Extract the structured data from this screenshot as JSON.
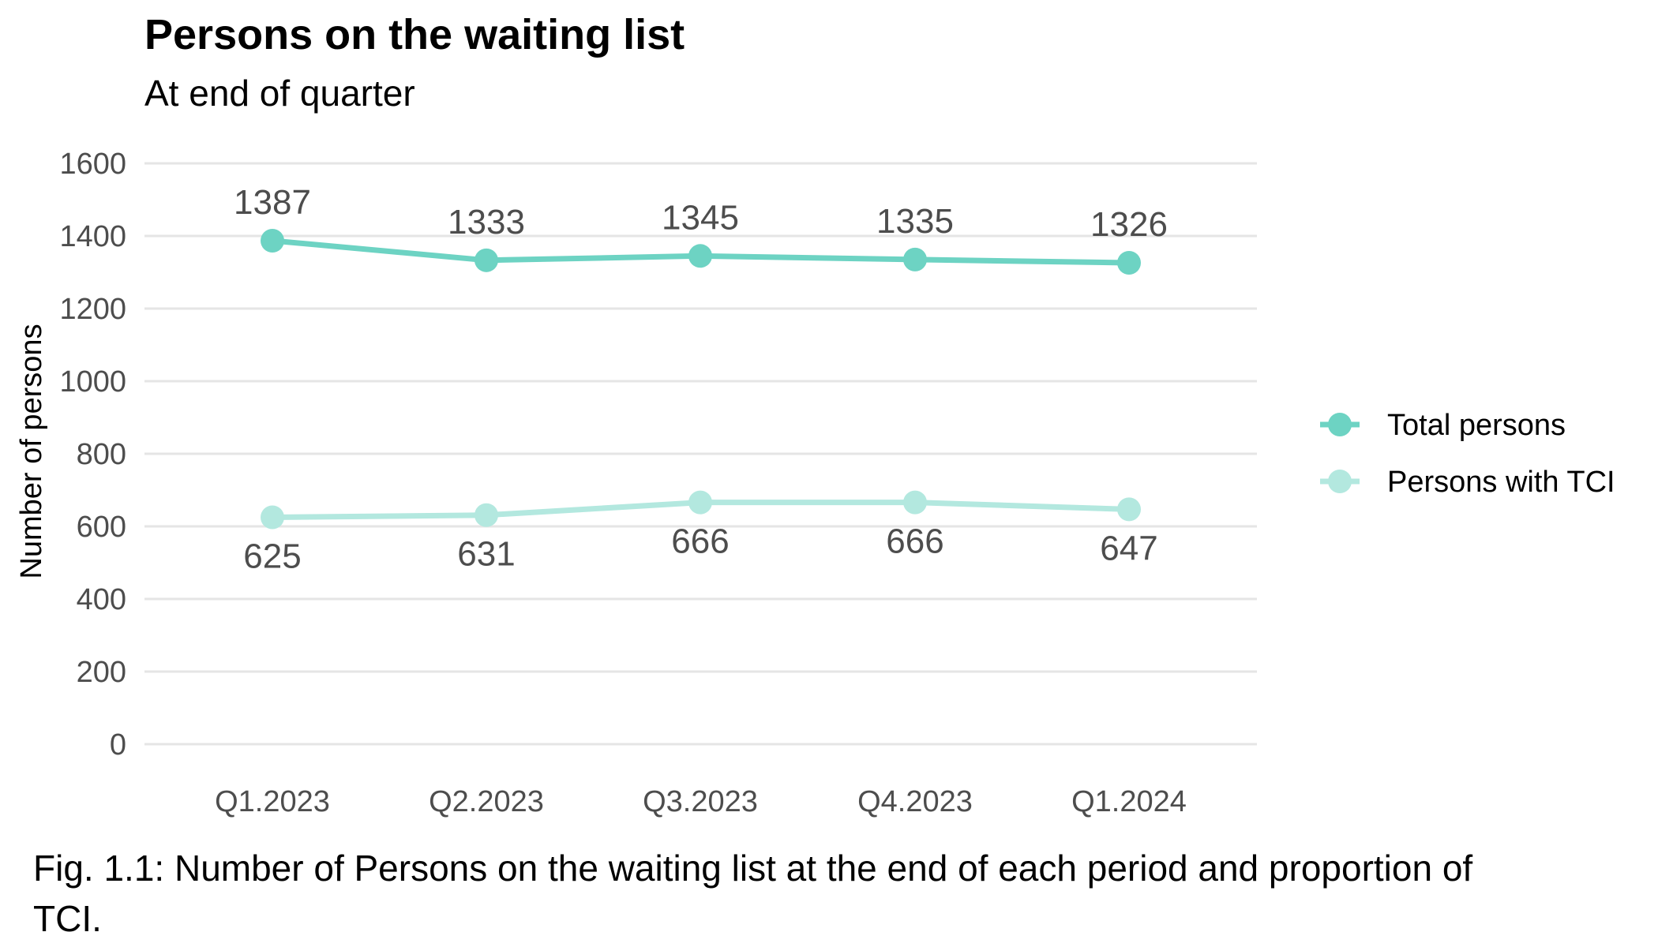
{
  "chart_data": {
    "type": "line",
    "title": "Persons on the waiting list",
    "subtitle": "At end of quarter",
    "ylabel": "Number of persons",
    "xlabel": "",
    "ylim": [
      0,
      1600
    ],
    "yticks": [
      0,
      200,
      400,
      600,
      800,
      1000,
      1200,
      1400,
      1600
    ],
    "categories": [
      "Q1.2023",
      "Q2.2023",
      "Q3.2023",
      "Q4.2023",
      "Q1.2024"
    ],
    "series": [
      {
        "name": "Total persons",
        "values": [
          1387,
          1333,
          1345,
          1335,
          1326
        ],
        "color": "#6dd3c3",
        "label_position": "above"
      },
      {
        "name": "Persons with TCI",
        "values": [
          625,
          631,
          666,
          666,
          647
        ],
        "color": "#b3e8df",
        "label_position": "below"
      }
    ],
    "grid": "horizontal",
    "legend_position": "right"
  },
  "caption": {
    "line1": "Fig. 1.1: Number of Persons on the waiting list at the end of each period and proportion of",
    "line2": "TCI."
  }
}
